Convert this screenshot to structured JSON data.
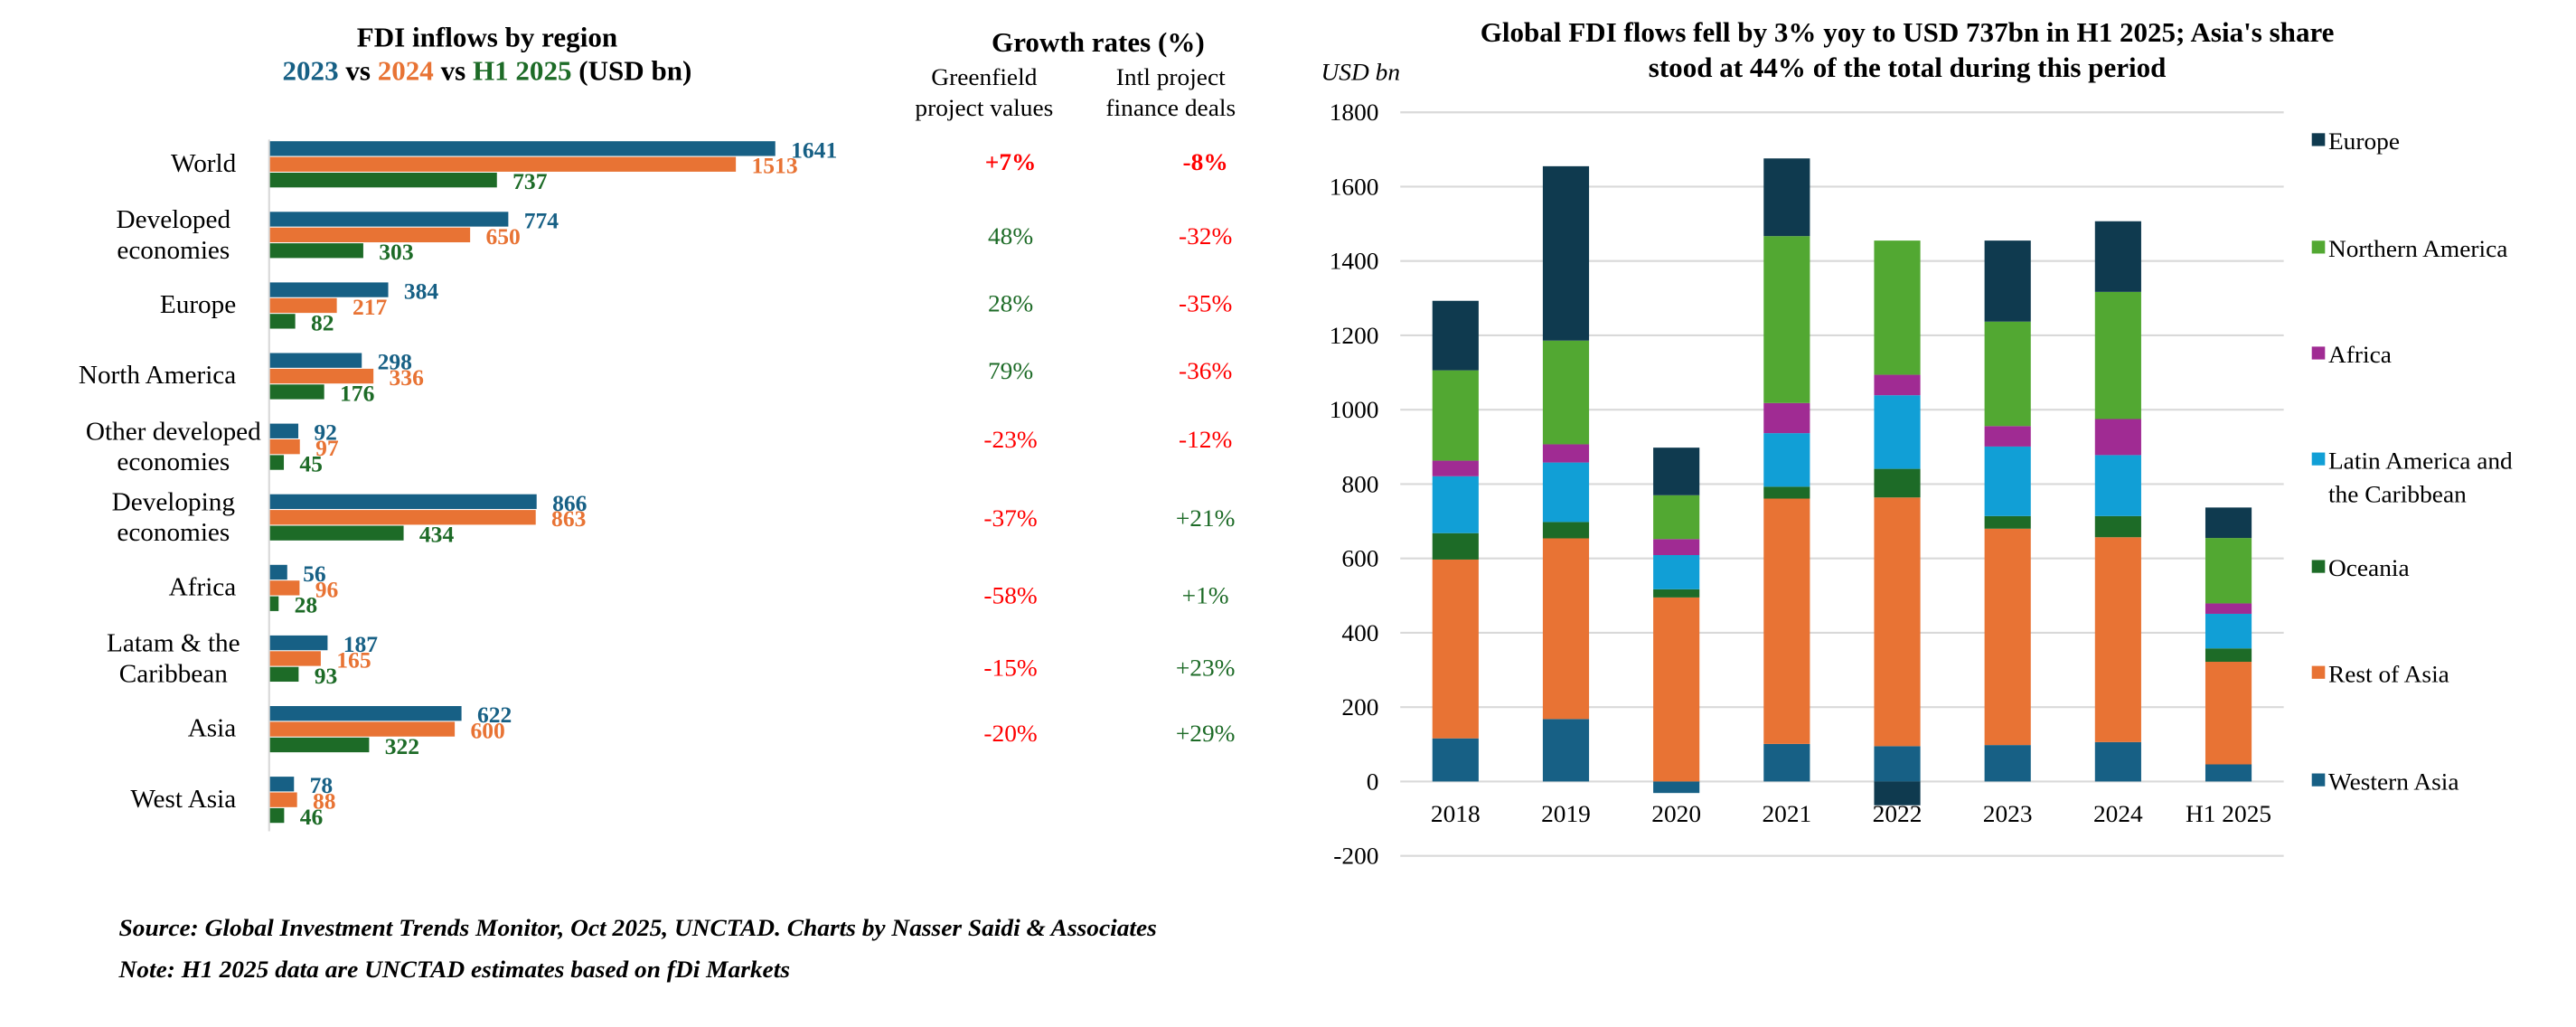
{
  "colors": {
    "y2023": "#176085",
    "y2024": "#E87334",
    "h12025": "#1D6B27",
    "red": "#FF0000",
    "green": "#1D6B27",
    "grid": "#D9D9D9",
    "europe": "#0F3A4F",
    "northern_america": "#52A832",
    "africa": "#A02B93",
    "latam": "#119FD6",
    "oceania": "#1D6B27",
    "rest_of_asia": "#E87334",
    "western_asia": "#176085"
  },
  "chart_data": [
    {
      "type": "bar",
      "orientation": "horizontal",
      "title": "FDI inflows by region",
      "subtitle_parts": [
        {
          "text": "2023",
          "series": "2023"
        },
        {
          "text": " vs ",
          "series": null
        },
        {
          "text": "2024",
          "series": "2024"
        },
        {
          "text": " vs ",
          "series": null
        },
        {
          "text": "H1 2025",
          "series": "H1 2025"
        },
        {
          "text": " (USD bn)",
          "series": null
        }
      ],
      "categories": [
        [
          "World"
        ],
        [
          "Developed",
          "economies"
        ],
        [
          "Europe"
        ],
        [
          "North America"
        ],
        [
          "Other developed",
          "economies"
        ],
        [
          "Developing",
          "economies"
        ],
        [
          "Africa"
        ],
        [
          "Latam & the",
          "Caribbean"
        ],
        [
          "Asia"
        ],
        [
          "West Asia"
        ]
      ],
      "series": [
        {
          "name": "2023",
          "values": [
            1641,
            774,
            384,
            298,
            92,
            866,
            56,
            187,
            622,
            78
          ]
        },
        {
          "name": "2024",
          "values": [
            1513,
            650,
            217,
            336,
            97,
            863,
            96,
            165,
            600,
            88
          ]
        },
        {
          "name": "H1 2025",
          "values": [
            737,
            303,
            82,
            176,
            45,
            434,
            28,
            93,
            322,
            46
          ]
        }
      ],
      "xlim": [
        0,
        1700
      ],
      "grid": false,
      "data_labels": true
    },
    {
      "type": "table",
      "title": "Growth rates (%)",
      "columns": [
        "Greenfield project values",
        "Intl project finance deals"
      ],
      "column_header_lines": [
        [
          "Greenfield",
          "project values"
        ],
        [
          "Intl project",
          "finance deals"
        ]
      ],
      "rows": [
        {
          "region": "World",
          "greenfield": "+7%",
          "greenfield_color": "red",
          "greenfield_bold": true,
          "finance": "-8%",
          "finance_color": "red",
          "finance_bold": true
        },
        {
          "region": "Developed economies",
          "greenfield": "48%",
          "greenfield_color": "green",
          "finance": "-32%",
          "finance_color": "red"
        },
        {
          "region": "Europe",
          "greenfield": "28%",
          "greenfield_color": "green",
          "finance": "-35%",
          "finance_color": "red"
        },
        {
          "region": "North America",
          "greenfield": "79%",
          "greenfield_color": "green",
          "finance": "-36%",
          "finance_color": "red"
        },
        {
          "region": "Other developed economies",
          "greenfield": "-23%",
          "greenfield_color": "red",
          "finance": "-12%",
          "finance_color": "red"
        },
        {
          "region": "Developing economies",
          "greenfield": "-37%",
          "greenfield_color": "red",
          "finance": "+21%",
          "finance_color": "green"
        },
        {
          "region": "Africa",
          "greenfield": "-58%",
          "greenfield_color": "red",
          "finance": "+1%",
          "finance_color": "green"
        },
        {
          "region": "Latam & the Caribbean",
          "greenfield": "-15%",
          "greenfield_color": "red",
          "finance": "+23%",
          "finance_color": "green"
        },
        {
          "region": "Asia",
          "greenfield": "-20%",
          "greenfield_color": "red",
          "finance": "+29%",
          "finance_color": "green"
        },
        {
          "region": "West Asia",
          "greenfield": "",
          "finance": ""
        }
      ]
    },
    {
      "type": "bar",
      "stacked": true,
      "title_lines": [
        "Global FDI flows fell by 3% yoy to USD 737bn in H1 2025; Asia's share",
        "stood at 44% of the total during this period"
      ],
      "ylabel": "USD bn",
      "ylim": [
        -200,
        1800
      ],
      "yticks": [
        -200,
        0,
        200,
        400,
        600,
        800,
        1000,
        1200,
        1400,
        1600,
        1800
      ],
      "grid": true,
      "legend_position": "right",
      "categories": [
        "2018",
        "2019",
        "2020",
        "2021",
        "2022",
        "2023",
        "2024",
        "H1 2025"
      ],
      "series": [
        {
          "name": "Western Asia",
          "key": "western_asia",
          "values": [
            116,
            168,
            -31,
            101,
            95,
            98,
            106,
            46
          ]
        },
        {
          "name": "Rest of Asia",
          "key": "rest_of_asia",
          "values": [
            481,
            486,
            495,
            660,
            669,
            582,
            551,
            276
          ]
        },
        {
          "name": "Oceania",
          "key": "oceania",
          "values": [
            71,
            44,
            22,
            32,
            77,
            34,
            57,
            36
          ]
        },
        {
          "name": "Latin America and the Caribbean",
          "key": "latam",
          "values": [
            153,
            160,
            92,
            144,
            198,
            187,
            164,
            93
          ]
        },
        {
          "name": "Africa",
          "key": "africa",
          "values": [
            42,
            49,
            43,
            81,
            55,
            55,
            97,
            28
          ]
        },
        {
          "name": "Northern America",
          "key": "northern_america",
          "values": [
            243,
            279,
            118,
            449,
            361,
            281,
            342,
            176
          ]
        },
        {
          "name": "Europe",
          "key": "europe",
          "values": [
            187,
            469,
            128,
            209,
            -64,
            218,
            190,
            82
          ]
        }
      ],
      "legend": [
        {
          "key": "europe",
          "lines": [
            "Europe"
          ]
        },
        {
          "key": "northern_america",
          "lines": [
            "Northern America"
          ]
        },
        {
          "key": "africa",
          "lines": [
            "Africa"
          ]
        },
        {
          "key": "latam",
          "lines": [
            "Latin America and",
            "the Caribbean"
          ]
        },
        {
          "key": "oceania",
          "lines": [
            "Oceania"
          ]
        },
        {
          "key": "rest_of_asia",
          "lines": [
            "Rest of Asia"
          ]
        },
        {
          "key": "western_asia",
          "lines": [
            "Western Asia"
          ]
        }
      ]
    }
  ],
  "footer": {
    "source": "Source: Global Investment Trends Monitor, Oct 2025, UNCTAD. Charts by Nasser Saidi & Associates",
    "note": "Note: H1 2025 data are UNCTAD estimates based on fDi Markets"
  }
}
